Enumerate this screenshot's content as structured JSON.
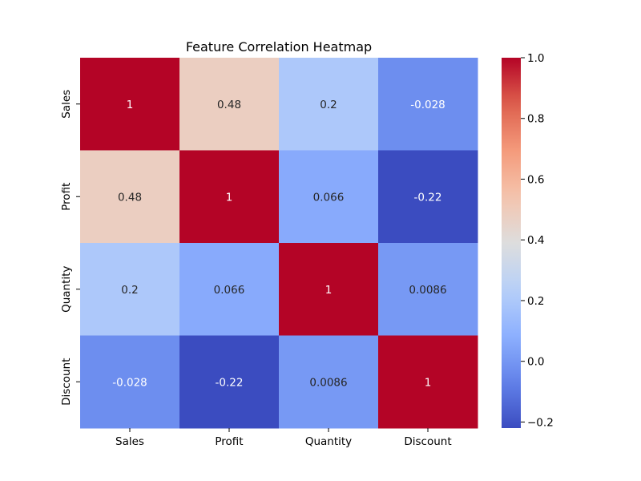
{
  "chart_data": {
    "type": "heatmap",
    "title": "Feature Correlation Heatmap",
    "x_labels": [
      "Sales",
      "Profit",
      "Quantity",
      "Discount"
    ],
    "y_labels": [
      "Sales",
      "Profit",
      "Quantity",
      "Discount"
    ],
    "values": [
      [
        1.0,
        0.48,
        0.2,
        -0.028
      ],
      [
        0.48,
        1.0,
        0.066,
        -0.22
      ],
      [
        0.2,
        0.066,
        1.0,
        0.0086
      ],
      [
        -0.028,
        -0.22,
        0.0086,
        1.0
      ]
    ],
    "annotations": [
      [
        "1",
        "0.48",
        "0.2",
        "-0.028"
      ],
      [
        "0.48",
        "1",
        "0.066",
        "-0.22"
      ],
      [
        "0.2",
        "0.066",
        "1",
        "0.0086"
      ],
      [
        "-0.028",
        "-0.22",
        "0.0086",
        "1"
      ]
    ],
    "colormap": "coolwarm",
    "vmin": -0.22,
    "vmax": 1.0,
    "colorbar_ticks": [
      "−0.2",
      "0.0",
      "0.2",
      "0.4",
      "0.6",
      "0.8",
      "1.0"
    ],
    "colorbar_tick_values": [
      -0.2,
      0.0,
      0.2,
      0.4,
      0.6,
      0.8,
      1.0
    ]
  }
}
